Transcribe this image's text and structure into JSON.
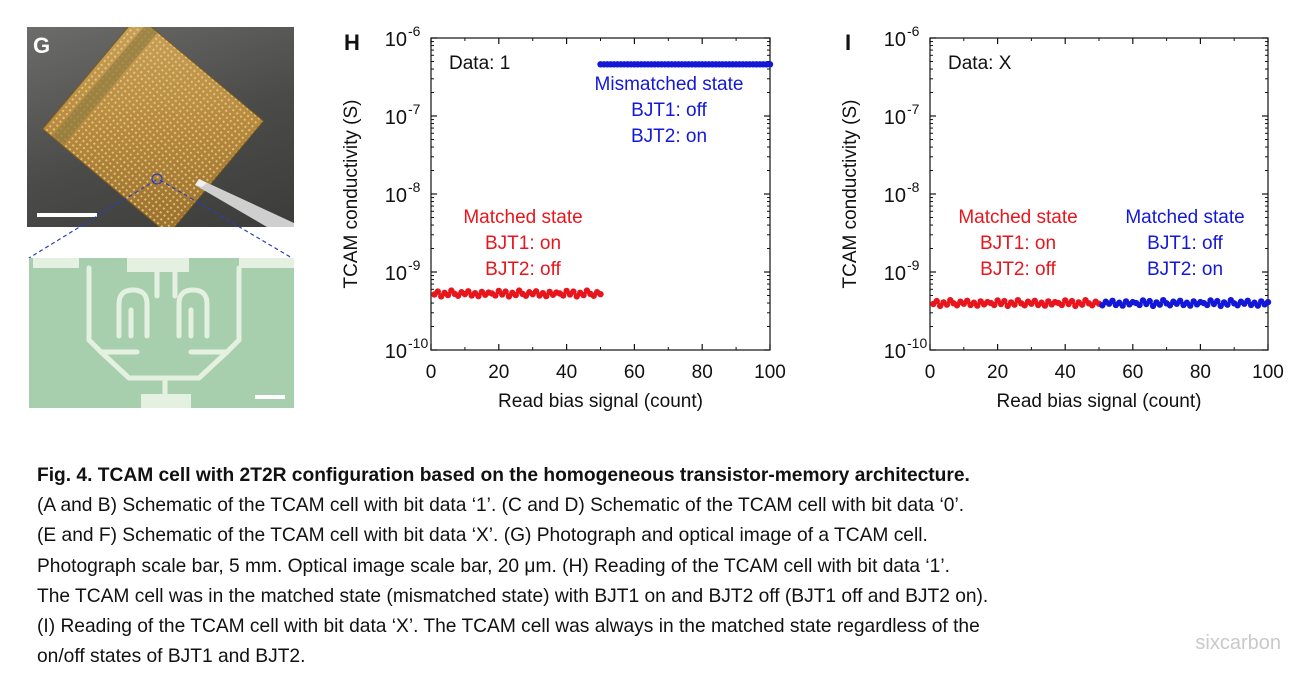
{
  "panel_g": {
    "label": "G"
  },
  "chart_data": [
    {
      "type": "scatter",
      "panel_label": "H",
      "inset_text": "Data: 1",
      "xlabel": "Read bias signal (count)",
      "ylabel": "TCAM conductivity (S)",
      "x_ticks": [
        "0",
        "20",
        "40",
        "60",
        "80",
        "100"
      ],
      "y_ticks": [
        {
          "base": "10",
          "exp": "-6"
        },
        {
          "base": "10",
          "exp": "-7"
        },
        {
          "base": "10",
          "exp": "-8"
        },
        {
          "base": "10",
          "exp": "-9"
        },
        {
          "base": "10",
          "exp": "-10"
        }
      ],
      "xlim": [
        0,
        100
      ],
      "ylim": [
        1e-10,
        1e-06
      ],
      "y_scale": "log",
      "series": [
        {
          "color": "#e8161c",
          "x_start": 1,
          "x_end": 50,
          "y": 5.3e-10
        },
        {
          "color": "#1318d8",
          "x_start": 50,
          "x_end": 100,
          "y": 4.6e-07
        }
      ],
      "annotations": [
        {
          "color": "#e8161c",
          "lines": [
            "Matched state",
            "BJT1: on",
            "BJT2: off"
          ]
        },
        {
          "color": "#1318d8",
          "lines": [
            "Mismatched state",
            "BJT1: off",
            "BJT2: on"
          ]
        }
      ]
    },
    {
      "type": "scatter",
      "panel_label": "I",
      "inset_text": "Data: X",
      "xlabel": "Read bias signal (count)",
      "ylabel": "TCAM conductivity (S)",
      "x_ticks": [
        "0",
        "20",
        "40",
        "60",
        "80",
        "100"
      ],
      "y_ticks": [
        {
          "base": "10",
          "exp": "-6"
        },
        {
          "base": "10",
          "exp": "-7"
        },
        {
          "base": "10",
          "exp": "-8"
        },
        {
          "base": "10",
          "exp": "-9"
        },
        {
          "base": "10",
          "exp": "-10"
        }
      ],
      "xlim": [
        0,
        100
      ],
      "ylim": [
        1e-10,
        1e-06
      ],
      "y_scale": "log",
      "series": [
        {
          "color": "#e8161c",
          "x_start": 1,
          "x_end": 50,
          "y": 4e-10
        },
        {
          "color": "#1318d8",
          "x_start": 51,
          "x_end": 100,
          "y": 4e-10
        }
      ],
      "annotations": [
        {
          "color": "#e8161c",
          "lines": [
            "Matched state",
            "BJT1: on",
            "BJT2: off"
          ]
        },
        {
          "color": "#1318d8",
          "lines": [
            "Matched state",
            "BJT1: off",
            "BJT2: on"
          ]
        }
      ]
    }
  ],
  "caption": {
    "title": "Fig. 4. TCAM cell with 2T2R configuration based on the homogeneous transistor-memory architecture.",
    "lines": [
      "(A and B) Schematic of the TCAM cell with bit data ‘1’. (C and D) Schematic of the TCAM cell with bit data ‘0’.",
      "(E and F) Schematic of the TCAM cell with bit data ‘X’. (G) Photograph and optical image of a TCAM cell.",
      "Photograph scale bar, 5 mm. Optical image scale bar, 20 μm. (H) Reading of the TCAM cell with bit data ‘1’.",
      "The TCAM cell was in the matched state (mismatched state) with BJT1 on and BJT2 off (BJT1 off and BJT2 on).",
      "(I) Reading of the TCAM cell with bit data ‘X’. The TCAM cell was always in the matched state regardless of the",
      "on/off states of BJT1 and BJT2."
    ]
  },
  "watermark": "sixcarbon",
  "colors": {
    "red": "#e8161c",
    "blue": "#1318d8"
  }
}
